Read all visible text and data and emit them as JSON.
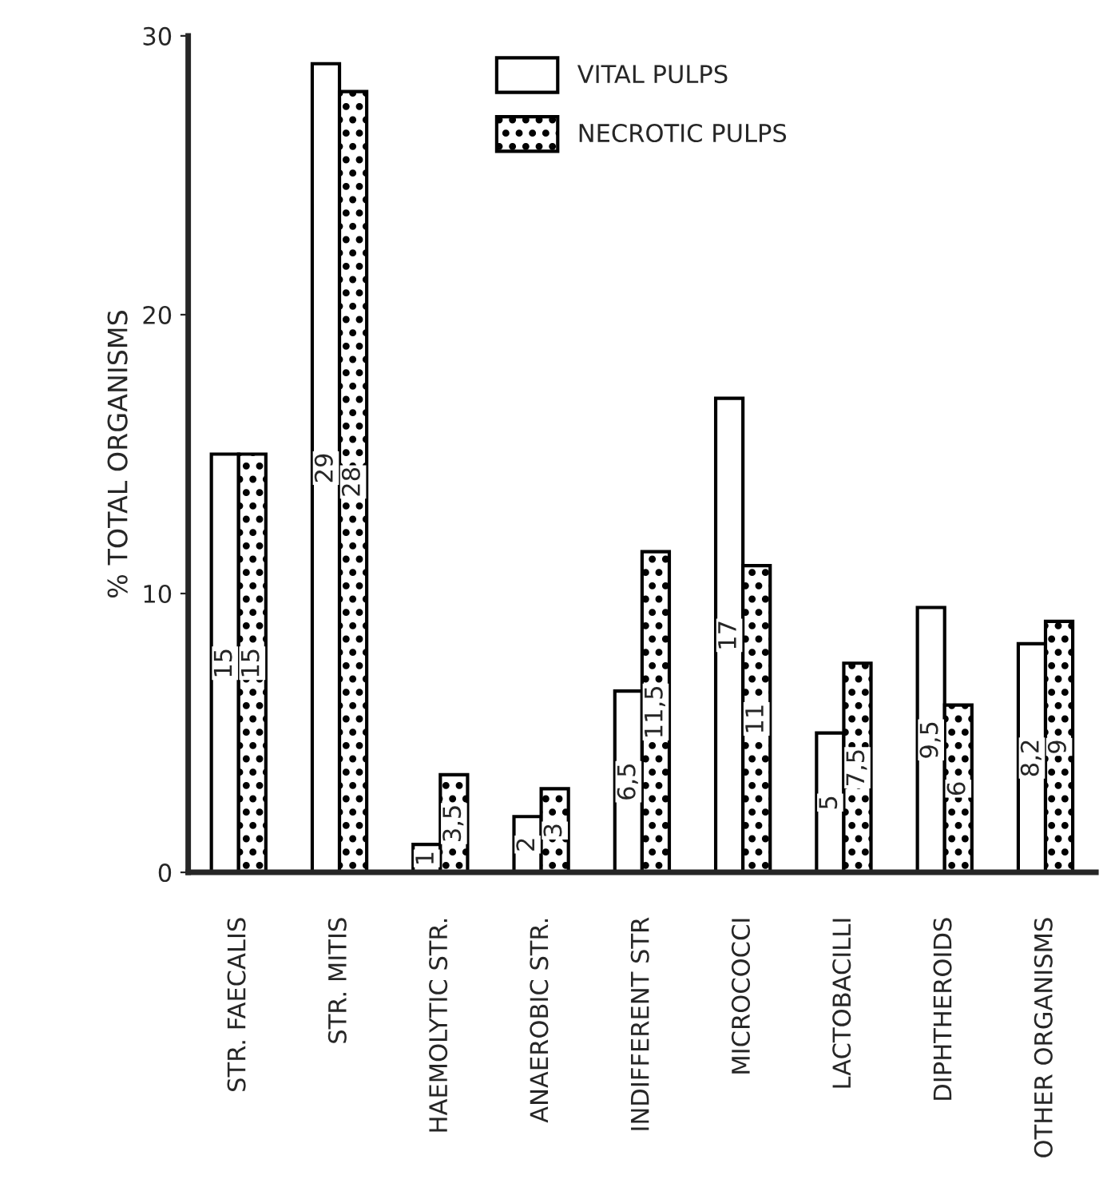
{
  "chart_data": {
    "type": "bar",
    "ylabel": "% TOTAL ORGANISMS",
    "categories": [
      "STR. FAECALIS",
      "STR. MITIS",
      "HAEMOLYTIC STR.",
      "ANAEROBIC STR.",
      "INDIFFERENT STR",
      "MICROCOCCI",
      "LACTOBACILLI",
      "DIPHTHEROIDS",
      "OTHER ORGANISMS"
    ],
    "series": [
      {
        "name": "VITAL PULPS",
        "color": "#ffffff",
        "values": [
          15,
          29,
          1,
          2,
          6.5,
          17,
          5,
          9.5,
          8.2
        ],
        "value_labels": [
          "15",
          "29",
          "1",
          "2",
          "6,5",
          "17",
          "5",
          "9,5",
          "8,2"
        ]
      },
      {
        "name": "NECROTIC PULPS",
        "color": "#000000",
        "values": [
          15,
          28,
          3.5,
          3,
          11.5,
          11,
          7.5,
          6,
          9
        ],
        "value_labels": [
          "15",
          "28",
          "3,5",
          "3",
          "11,5",
          "11",
          "7,5",
          "6",
          "9"
        ]
      }
    ],
    "ylim": [
      0,
      30
    ],
    "yticks": [
      0,
      10,
      20,
      30
    ],
    "grid": false,
    "legend": "top"
  }
}
